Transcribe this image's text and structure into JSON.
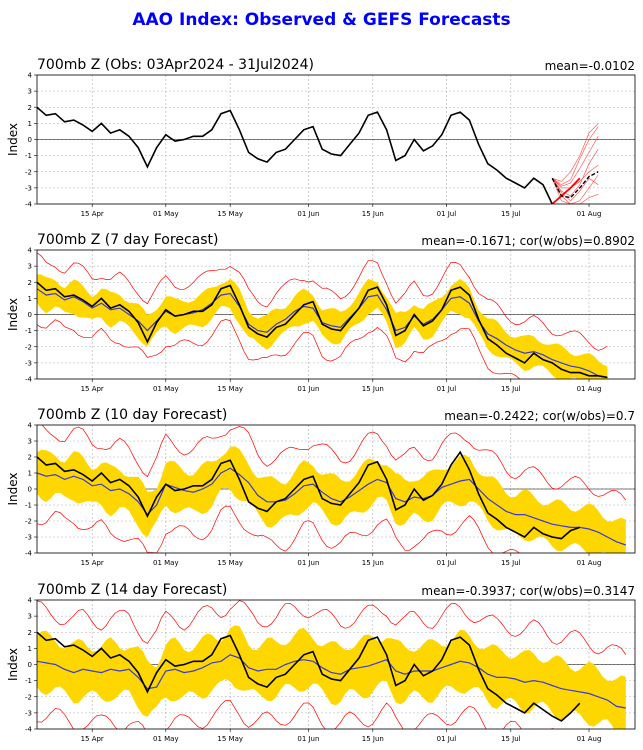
{
  "title": "AAO Index: Observed & GEFS Forecasts",
  "colors": {
    "title": "#0000ff",
    "observed": "#000000",
    "mean": "#3a3ad0",
    "spread": "#ffd700",
    "extremes": "#ff0000",
    "members": "#ff4444",
    "zero": "#000000",
    "grid": "#b0b0b0"
  },
  "chart_data": [
    {
      "type": "line",
      "panel_title": "700mb Z (Obs: 03Apr2024 - 31Jul2024)",
      "stats": "mean=-0.0102",
      "ylabel": "Index",
      "ylim": [
        -4,
        4
      ],
      "yticks": [
        -4,
        -3,
        -2,
        -1,
        0,
        1,
        2,
        3,
        4
      ],
      "xlim": [
        0,
        130
      ],
      "xticks": [
        {
          "x": 12,
          "label": "15 Apr"
        },
        {
          "x": 28,
          "label": "01 May"
        },
        {
          "x": 42,
          "label": "15 May"
        },
        {
          "x": 59,
          "label": "01 Jun"
        },
        {
          "x": 73,
          "label": "15 Jun"
        },
        {
          "x": 89,
          "label": "01 Jul"
        },
        {
          "x": 103,
          "label": "15 Jul"
        },
        {
          "x": 120,
          "label": "01 Aug"
        }
      ],
      "grid": true,
      "observed": {
        "x": [
          0,
          2,
          4,
          6,
          8,
          10,
          12,
          14,
          16,
          18,
          20,
          22,
          24,
          26,
          28,
          30,
          32,
          34,
          36,
          38,
          40,
          42,
          44,
          46,
          48,
          50,
          52,
          54,
          56,
          58,
          60,
          62,
          64,
          66,
          68,
          70,
          72,
          74,
          76,
          78,
          80,
          82,
          84,
          86,
          88,
          90,
          92,
          94,
          96,
          98,
          100,
          102,
          104,
          106,
          108,
          110,
          112,
          114,
          116,
          118
        ],
        "y": [
          2.0,
          1.5,
          1.6,
          1.1,
          1.2,
          0.9,
          0.5,
          1.0,
          0.4,
          0.6,
          0.2,
          -0.5,
          -1.7,
          -0.5,
          0.3,
          -0.1,
          0.0,
          0.2,
          0.2,
          0.6,
          1.6,
          1.8,
          0.6,
          -0.8,
          -1.2,
          -1.4,
          -0.8,
          -0.6,
          0.0,
          0.6,
          0.8,
          -0.6,
          -0.9,
          -1.0,
          -0.3,
          0.4,
          1.5,
          1.7,
          0.6,
          -1.3,
          -1.0,
          0.0,
          -0.7,
          -0.4,
          0.3,
          1.5,
          1.7,
          1.2,
          -0.3,
          -1.5,
          -1.9,
          -2.4,
          -2.7,
          -3.0,
          -2.4,
          -2.8,
          -4.0,
          -3.5,
          -3.0,
          -2.4
        ]
      },
      "forecast_start": 112,
      "members": {
        "x": [
          112,
          114,
          116,
          118,
          120,
          122
        ],
        "series": [
          [
            -2.4,
            -2.8,
            -2.5,
            -1.2,
            0.0,
            0.8
          ],
          [
            -2.4,
            -3.2,
            -3.5,
            -2.8,
            -1.5,
            -0.6
          ],
          [
            -2.4,
            -3.5,
            -4.0,
            -3.8,
            -3.0,
            -2.2
          ],
          [
            -2.4,
            -2.6,
            -2.0,
            -1.0,
            0.4,
            1.0
          ],
          [
            -2.4,
            -3.0,
            -3.0,
            -2.6,
            -2.0,
            -1.6
          ],
          [
            -2.4,
            -3.8,
            -4.0,
            -4.0,
            -3.6,
            -3.4
          ],
          [
            -2.4,
            -2.9,
            -2.7,
            -1.8,
            -0.8,
            0.2
          ],
          [
            -2.4,
            -3.3,
            -3.8,
            -3.2,
            -2.4,
            -2.8
          ]
        ]
      },
      "mean_forecast": {
        "x": [
          112,
          114,
          116,
          118,
          120,
          122
        ],
        "y": [
          -2.4,
          -3.5,
          -3.6,
          -3.0,
          -2.3,
          -2.0
        ]
      }
    },
    {
      "type": "line",
      "panel_title": "700mb Z (7 day Forecast)",
      "stats": "mean=-0.1671; cor(w/obs)=0.8902",
      "ylabel": "Index",
      "ylim": [
        -4,
        4
      ],
      "yticks": [
        -4,
        -3,
        -2,
        -1,
        0,
        1,
        2,
        3,
        4
      ],
      "xlim": [
        0,
        130
      ],
      "xticks": [
        {
          "x": 12,
          "label": "15 Apr"
        },
        {
          "x": 28,
          "label": "01 May"
        },
        {
          "x": 42,
          "label": "15 May"
        },
        {
          "x": 59,
          "label": "01 Jun"
        },
        {
          "x": 73,
          "label": "15 Jun"
        },
        {
          "x": 89,
          "label": "01 Jul"
        },
        {
          "x": 103,
          "label": "15 Jul"
        },
        {
          "x": 120,
          "label": "01 Aug"
        }
      ],
      "grid": true,
      "observed": {
        "x": [
          0,
          2,
          4,
          6,
          8,
          10,
          12,
          14,
          16,
          18,
          20,
          22,
          24,
          26,
          28,
          30,
          32,
          34,
          36,
          38,
          40,
          42,
          44,
          46,
          48,
          50,
          52,
          54,
          56,
          58,
          60,
          62,
          64,
          66,
          68,
          70,
          72,
          74,
          76,
          78,
          80,
          82,
          84,
          86,
          88,
          90,
          92,
          94,
          96,
          98,
          100,
          102,
          104,
          106,
          108,
          110,
          112,
          114,
          116,
          118,
          120,
          122,
          124
        ],
        "y": [
          2.0,
          1.5,
          1.6,
          1.1,
          1.2,
          0.9,
          0.5,
          1.0,
          0.4,
          0.6,
          0.2,
          -0.5,
          -1.7,
          -0.5,
          0.3,
          -0.1,
          0.0,
          0.2,
          0.2,
          0.6,
          1.6,
          1.8,
          0.6,
          -0.8,
          -1.2,
          -1.4,
          -0.8,
          -0.6,
          0.0,
          0.6,
          0.8,
          -0.6,
          -0.9,
          -1.0,
          -0.3,
          0.4,
          1.5,
          1.7,
          0.6,
          -1.3,
          -1.0,
          0.0,
          -0.7,
          -0.4,
          0.3,
          1.5,
          1.7,
          1.2,
          -0.3,
          -1.5,
          -1.9,
          -2.4,
          -2.7,
          -3.0,
          -2.4,
          -2.8,
          -3.0,
          -3.4,
          -3.6,
          -3.6,
          -3.8,
          -3.8,
          -3.9
        ]
      },
      "mean_forecast": {
        "x": [
          0,
          2,
          4,
          6,
          8,
          10,
          12,
          14,
          16,
          18,
          20,
          22,
          24,
          26,
          28,
          30,
          32,
          34,
          36,
          38,
          40,
          42,
          44,
          46,
          48,
          50,
          52,
          54,
          56,
          58,
          60,
          62,
          64,
          66,
          68,
          70,
          72,
          74,
          76,
          78,
          80,
          82,
          84,
          86,
          88,
          90,
          92,
          94,
          96,
          98,
          100,
          102,
          104,
          106,
          108,
          110,
          112,
          114,
          116,
          118,
          120,
          122,
          124
        ],
        "y": [
          1.6,
          1.2,
          1.3,
          0.9,
          1.1,
          0.8,
          0.4,
          0.7,
          0.3,
          0.4,
          0.0,
          -0.4,
          -1.0,
          -0.4,
          0.2,
          -0.1,
          0.0,
          0.1,
          0.3,
          0.7,
          1.2,
          1.3,
          0.5,
          -0.6,
          -1.0,
          -1.1,
          -0.6,
          -0.3,
          0.2,
          0.5,
          0.4,
          -0.5,
          -0.7,
          -0.8,
          -0.2,
          0.4,
          1.1,
          1.2,
          0.3,
          -1.0,
          -0.8,
          -0.1,
          -0.6,
          -0.3,
          0.3,
          1.0,
          1.1,
          0.7,
          -0.4,
          -1.2,
          -1.5,
          -1.9,
          -2.2,
          -2.4,
          -2.3,
          -2.5,
          -2.8,
          -3.0,
          -3.2,
          -3.3,
          -3.5,
          -3.8,
          -3.9
        ]
      },
      "spread_halfwidth": 0.9,
      "extreme_halfwidth": 1.9
    },
    {
      "type": "line",
      "panel_title": "700mb Z (10 day Forecast)",
      "stats": "mean=-0.2422; cor(w/obs)=0.7",
      "ylabel": "Index",
      "ylim": [
        -4,
        4
      ],
      "yticks": [
        -4,
        -3,
        -2,
        -1,
        0,
        1,
        2,
        3,
        4
      ],
      "xlim": [
        0,
        130
      ],
      "xticks": [
        {
          "x": 12,
          "label": "15 Apr"
        },
        {
          "x": 28,
          "label": "01 May"
        },
        {
          "x": 42,
          "label": "15 May"
        },
        {
          "x": 59,
          "label": "01 Jun"
        },
        {
          "x": 73,
          "label": "15 Jun"
        },
        {
          "x": 89,
          "label": "01 Jul"
        },
        {
          "x": 103,
          "label": "15 Jul"
        },
        {
          "x": 120,
          "label": "01 Aug"
        }
      ],
      "grid": true,
      "observed": {
        "x": [
          0,
          2,
          4,
          6,
          8,
          10,
          12,
          14,
          16,
          18,
          20,
          22,
          24,
          26,
          28,
          30,
          32,
          34,
          36,
          38,
          40,
          42,
          44,
          46,
          48,
          50,
          52,
          54,
          56,
          58,
          60,
          62,
          64,
          66,
          68,
          70,
          72,
          74,
          76,
          78,
          80,
          82,
          84,
          86,
          88,
          90,
          92,
          94,
          96,
          98,
          100,
          102,
          104,
          106,
          108,
          110,
          112,
          114,
          116,
          118
        ],
        "y": [
          2.0,
          1.5,
          1.6,
          1.1,
          1.2,
          0.9,
          0.5,
          1.0,
          0.4,
          0.6,
          0.2,
          -0.5,
          -1.7,
          -0.5,
          0.3,
          -0.1,
          0.0,
          0.2,
          0.2,
          0.6,
          1.6,
          1.8,
          0.6,
          -0.8,
          -1.2,
          -1.4,
          -0.8,
          -0.6,
          0.0,
          0.6,
          0.8,
          -0.6,
          -0.9,
          -1.0,
          -0.3,
          0.4,
          1.5,
          1.7,
          0.6,
          -1.3,
          -1.0,
          0.0,
          -0.7,
          -0.4,
          0.3,
          1.5,
          2.3,
          1.2,
          -0.3,
          -1.5,
          -1.9,
          -2.4,
          -2.7,
          -3.0,
          -2.4,
          -2.8,
          -3.0,
          -3.1,
          -2.6,
          -2.4
        ]
      },
      "mean_forecast": {
        "x": [
          0,
          2,
          4,
          6,
          8,
          10,
          12,
          14,
          16,
          18,
          20,
          22,
          24,
          26,
          28,
          30,
          32,
          34,
          36,
          38,
          40,
          42,
          44,
          46,
          48,
          50,
          52,
          54,
          56,
          58,
          60,
          62,
          64,
          66,
          68,
          70,
          72,
          74,
          76,
          78,
          80,
          82,
          84,
          86,
          88,
          90,
          92,
          94,
          96,
          98,
          100,
          102,
          104,
          106,
          108,
          110,
          112,
          114,
          116,
          118,
          120,
          122,
          124,
          126,
          128
        ],
        "y": [
          1.0,
          0.8,
          0.9,
          0.6,
          0.8,
          0.6,
          0.2,
          0.3,
          -0.1,
          0.0,
          -0.3,
          -0.8,
          -1.6,
          -1.0,
          0.3,
          0.1,
          -0.1,
          -0.2,
          0.0,
          0.3,
          1.0,
          1.3,
          0.9,
          0.4,
          -0.4,
          -0.8,
          -0.8,
          -0.7,
          -0.3,
          0.2,
          0.3,
          -0.2,
          -0.6,
          -0.8,
          -0.5,
          -0.1,
          0.3,
          0.6,
          0.4,
          -0.6,
          -0.8,
          -0.5,
          -0.6,
          -0.4,
          0.1,
          0.3,
          0.5,
          0.6,
          0.0,
          -0.6,
          -1.0,
          -1.4,
          -1.6,
          -1.6,
          -1.8,
          -2.0,
          -2.2,
          -2.3,
          -2.4,
          -2.4,
          -2.5,
          -2.7,
          -3.0,
          -3.3,
          -3.5
        ]
      },
      "spread_halfwidth": 1.3,
      "extreme_halfwidth": 2.7
    },
    {
      "type": "line",
      "panel_title": "700mb Z (14 day Forecast)",
      "stats": "mean=-0.3937; cor(w/obs)=0.3147",
      "ylabel": "Index",
      "ylim": [
        -4,
        4
      ],
      "yticks": [
        -4,
        -3,
        -2,
        -1,
        0,
        1,
        2,
        3,
        4
      ],
      "xlim": [
        0,
        130
      ],
      "xticks": [
        {
          "x": 12,
          "label": "15 Apr"
        },
        {
          "x": 28,
          "label": "01 May"
        },
        {
          "x": 42,
          "label": "15 May"
        },
        {
          "x": 59,
          "label": "01 Jun"
        },
        {
          "x": 73,
          "label": "15 Jun"
        },
        {
          "x": 89,
          "label": "01 Jul"
        },
        {
          "x": 103,
          "label": "15 Jul"
        },
        {
          "x": 120,
          "label": "01 Aug"
        }
      ],
      "grid": true,
      "observed": {
        "x": [
          0,
          2,
          4,
          6,
          8,
          10,
          12,
          14,
          16,
          18,
          20,
          22,
          24,
          26,
          28,
          30,
          32,
          34,
          36,
          38,
          40,
          42,
          44,
          46,
          48,
          50,
          52,
          54,
          56,
          58,
          60,
          62,
          64,
          66,
          68,
          70,
          72,
          74,
          76,
          78,
          80,
          82,
          84,
          86,
          88,
          90,
          92,
          94,
          96,
          98,
          100,
          102,
          104,
          106,
          108,
          110,
          112,
          114,
          116,
          118
        ],
        "y": [
          2.0,
          1.5,
          1.6,
          1.1,
          1.2,
          0.9,
          0.5,
          1.0,
          0.4,
          0.6,
          0.2,
          -0.5,
          -1.7,
          -0.5,
          0.3,
          -0.1,
          0.0,
          0.2,
          0.2,
          0.6,
          1.6,
          1.8,
          0.6,
          -0.8,
          -1.2,
          -1.4,
          -0.8,
          -0.6,
          0.0,
          0.6,
          0.8,
          -0.6,
          -0.9,
          -1.0,
          -0.3,
          0.4,
          1.5,
          1.7,
          0.6,
          -1.3,
          -1.0,
          0.0,
          -0.7,
          -0.4,
          0.3,
          1.5,
          1.7,
          1.2,
          -0.3,
          -1.5,
          -1.9,
          -2.4,
          -2.7,
          -3.0,
          -2.4,
          -2.8,
          -3.2,
          -3.5,
          -3.0,
          -2.4
        ]
      },
      "mean_forecast": {
        "x": [
          0,
          2,
          4,
          6,
          8,
          10,
          12,
          14,
          16,
          18,
          20,
          22,
          24,
          26,
          28,
          30,
          32,
          34,
          36,
          38,
          40,
          42,
          44,
          46,
          48,
          50,
          52,
          54,
          56,
          58,
          60,
          62,
          64,
          66,
          68,
          70,
          72,
          74,
          76,
          78,
          80,
          82,
          84,
          86,
          88,
          90,
          92,
          94,
          96,
          98,
          100,
          102,
          104,
          106,
          108,
          110,
          112,
          114,
          116,
          118,
          120,
          122,
          124,
          126,
          128
        ],
        "y": [
          0.2,
          0.1,
          0.0,
          -0.3,
          -0.5,
          -0.3,
          -0.4,
          -0.5,
          -0.3,
          -0.4,
          -0.3,
          -0.8,
          -1.5,
          -1.4,
          -0.4,
          -0.3,
          -0.5,
          -0.4,
          -0.2,
          0.1,
          0.2,
          0.6,
          0.4,
          -0.2,
          -0.4,
          -0.3,
          -0.3,
          0.0,
          0.2,
          0.3,
          0.2,
          -0.2,
          -0.5,
          -0.6,
          -0.3,
          -0.2,
          -0.1,
          0.1,
          0.3,
          -0.4,
          -0.6,
          -0.4,
          -0.4,
          -0.4,
          -0.2,
          0.0,
          0.2,
          0.1,
          -0.2,
          -0.6,
          -0.8,
          -0.8,
          -0.9,
          -1.1,
          -1.0,
          -1.1,
          -1.3,
          -1.5,
          -1.6,
          -1.7,
          -1.8,
          -2.0,
          -2.2,
          -2.6,
          -2.7
        ]
      },
      "spread_halfwidth": 1.6,
      "extreme_halfwidth": 3.2
    }
  ]
}
